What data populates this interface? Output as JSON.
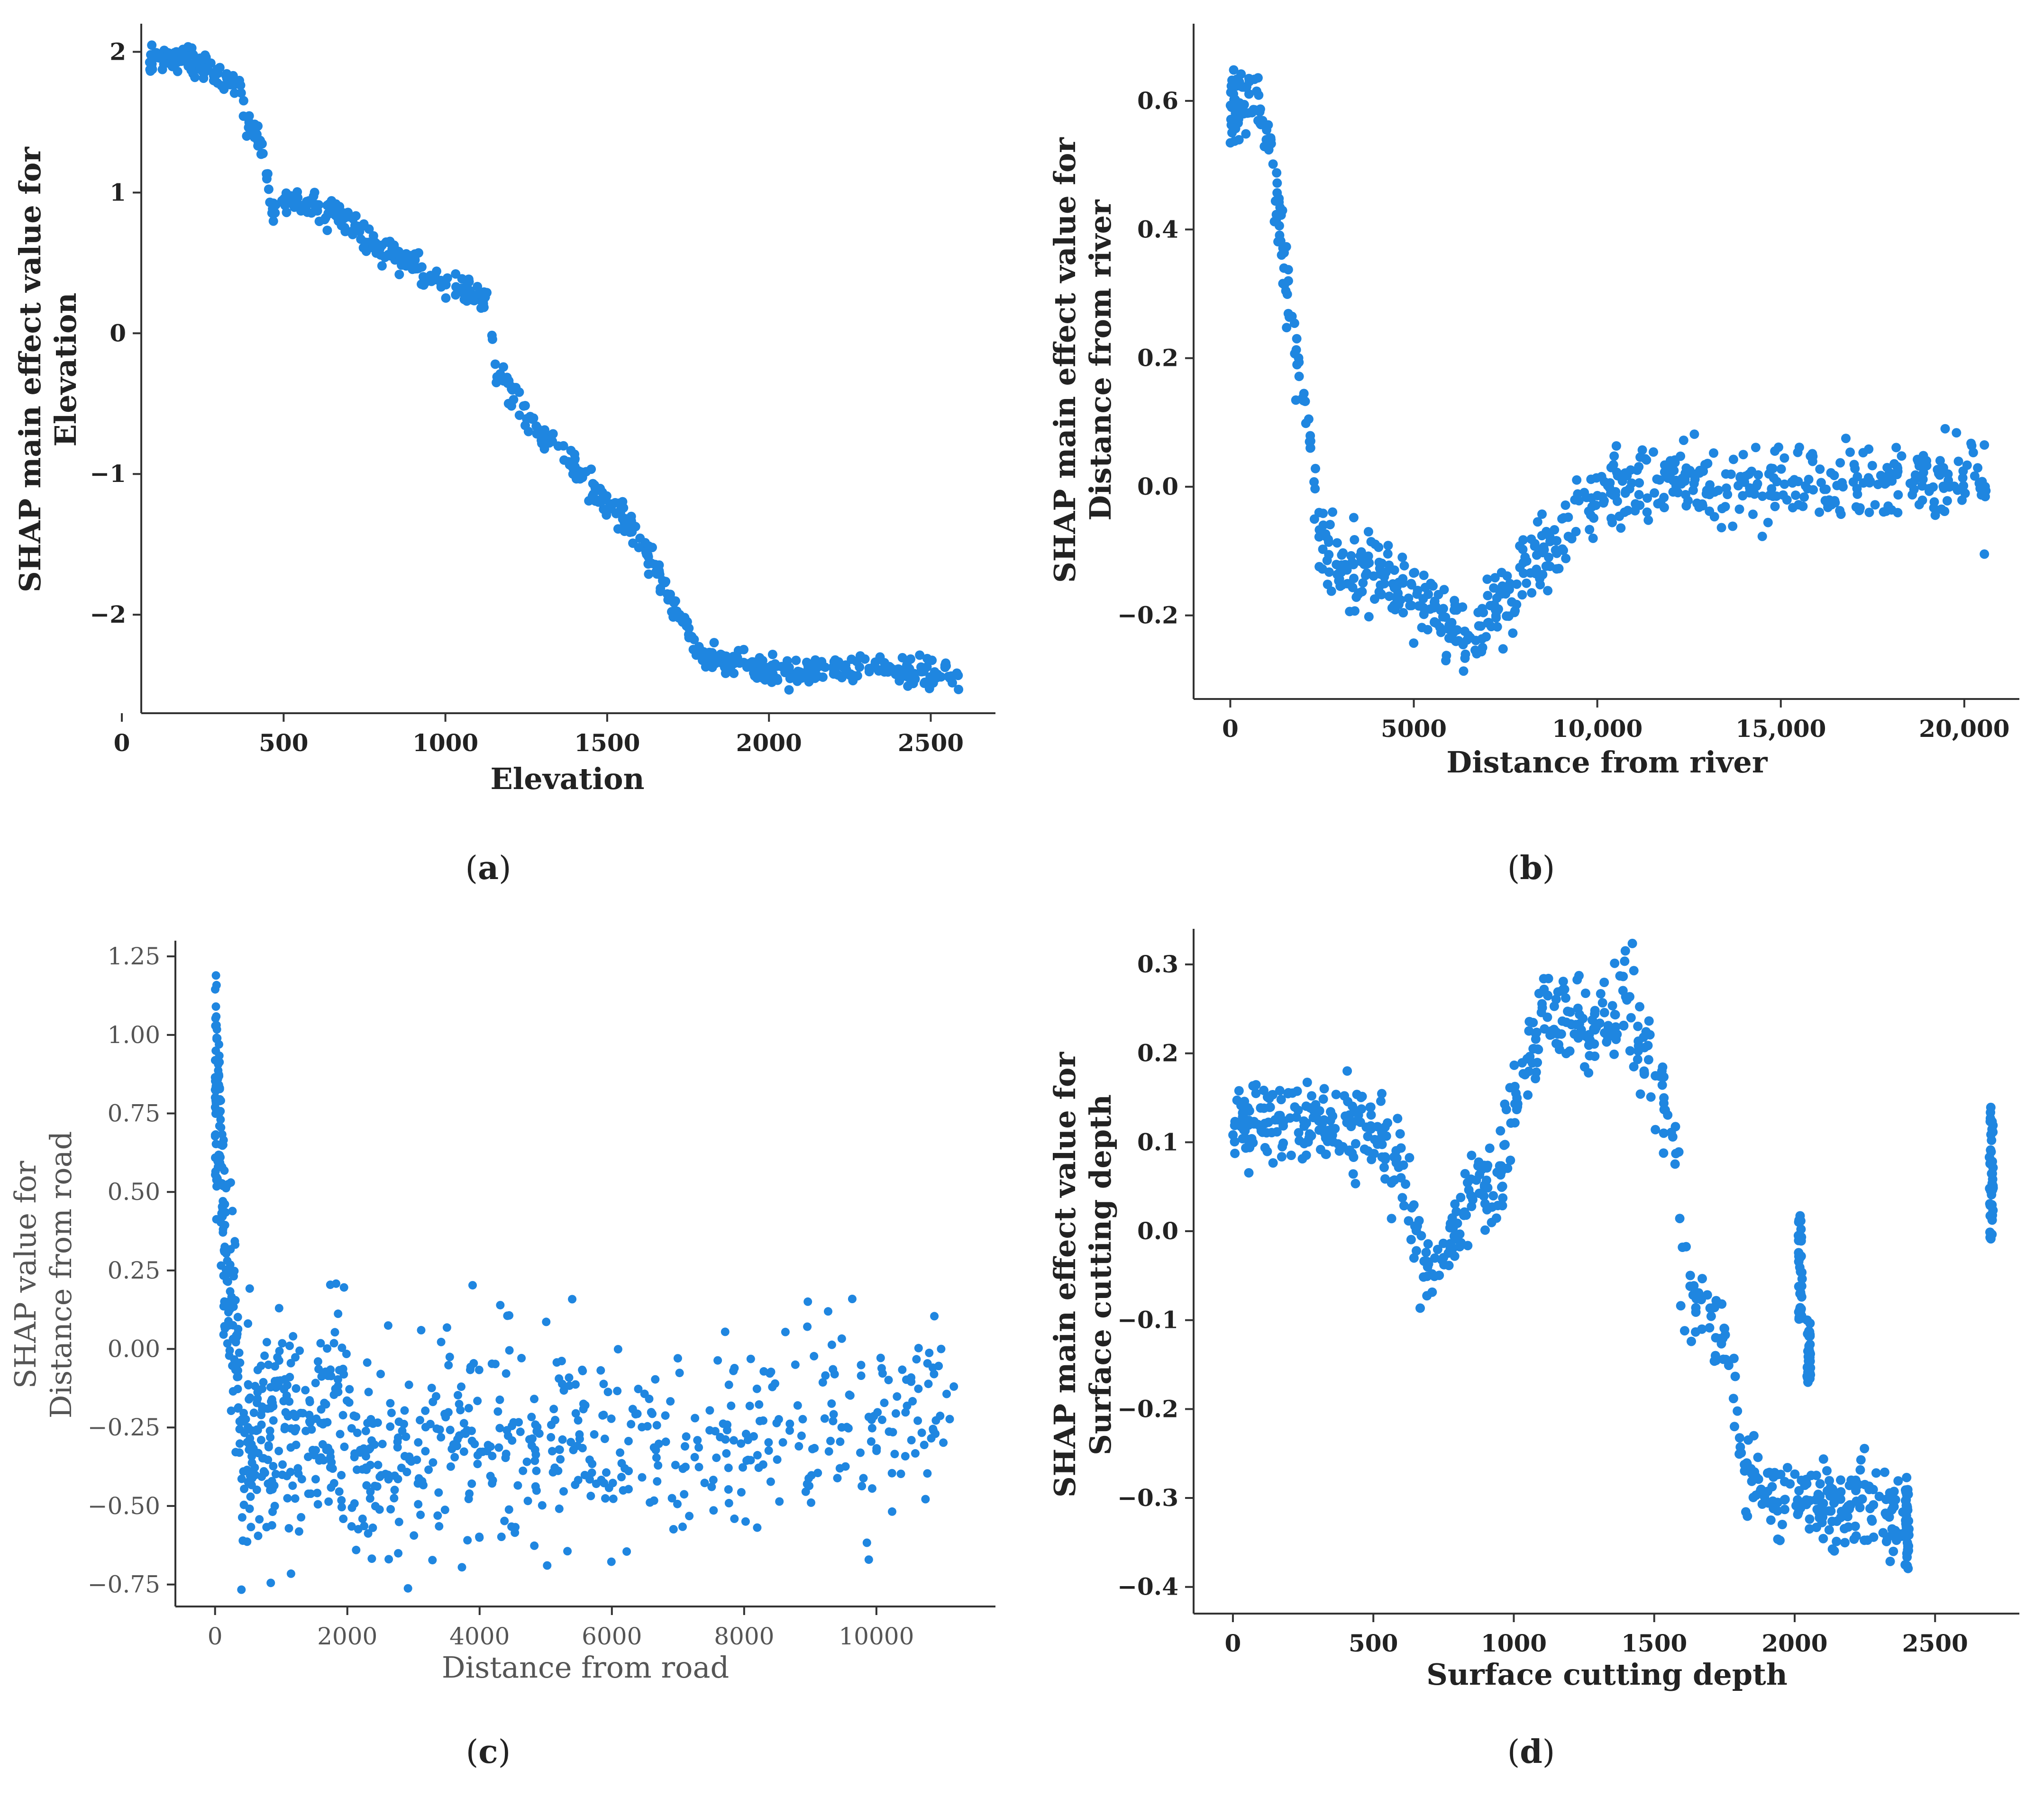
{
  "colors": {
    "points": "#1f86e0",
    "axis": "#333333",
    "text": "#222222"
  },
  "chart_data": [
    {
      "id": "a",
      "type": "scatter",
      "caption": "a",
      "xlabel": "Elevation",
      "ylabel_lines": [
        "SHAP main effect value for",
        "Elevation"
      ],
      "xlim": [
        60,
        2700
      ],
      "ylim": [
        -2.7,
        2.2
      ],
      "xticks": [
        0,
        500,
        1000,
        1500,
        2000,
        2500
      ],
      "xtick_labels": [
        "0",
        "500",
        "1000",
        "1500",
        "2000",
        "2500"
      ],
      "yticks": [
        2,
        1,
        0,
        -1,
        -2
      ],
      "ytick_labels": [
        "2",
        "1",
        "0",
        "−1",
        "−2"
      ],
      "trend_x": [
        80,
        120,
        200,
        260,
        300,
        370,
        380,
        420,
        440,
        460,
        500,
        600,
        700,
        800,
        900,
        1000,
        1100,
        1140,
        1150,
        1200,
        1300,
        1400,
        1500,
        1600,
        1650,
        1700,
        1760,
        1800,
        2000,
        2200,
        2400,
        2500,
        2590
      ],
      "trend_y": [
        1.92,
        1.94,
        1.96,
        1.88,
        1.82,
        1.75,
        1.5,
        1.4,
        1.3,
        0.88,
        0.9,
        0.92,
        0.8,
        0.58,
        0.48,
        0.35,
        0.26,
        0.18,
        -0.22,
        -0.38,
        -0.75,
        -0.95,
        -1.2,
        -1.45,
        -1.65,
        -1.95,
        -2.15,
        -2.32,
        -2.4,
        -2.4,
        -2.4,
        -2.42,
        -2.43
      ],
      "y_spread": 0.05
    },
    {
      "id": "b",
      "type": "scatter",
      "caption": "b",
      "xlabel": "Distance from river",
      "ylabel_lines": [
        "SHAP main effect value for",
        "Distance from river"
      ],
      "xlim": [
        -1000,
        21500
      ],
      "ylim": [
        -0.33,
        0.72
      ],
      "xticks": [
        0,
        5000,
        10000,
        15000,
        20000
      ],
      "xtick_labels": [
        "0",
        "5000",
        "10,000",
        "15,000",
        "20,000"
      ],
      "yticks": [
        0.6,
        0.4,
        0.2,
        0.0,
        -0.2
      ],
      "ytick_labels": [
        "0.6",
        "0.4",
        "0.2",
        "0.0",
        "−0.2"
      ],
      "trend_x": [
        0,
        400,
        800,
        1000,
        1400,
        1800,
        2200,
        2300,
        2400,
        3000,
        3500,
        4000,
        4500,
        5000,
        6000,
        6500,
        7000,
        8000,
        9000,
        10000,
        11000,
        12000,
        14000,
        16000,
        19000,
        20600
      ],
      "trend_y": [
        0.6,
        0.6,
        0.6,
        0.55,
        0.38,
        0.2,
        0.06,
        -0.02,
        -0.08,
        -0.13,
        -0.14,
        -0.12,
        -0.15,
        -0.17,
        -0.21,
        -0.25,
        -0.2,
        -0.14,
        -0.08,
        -0.01,
        0.01,
        0.01,
        0.0,
        0.0,
        0.01,
        0.005
      ],
      "y_spread": 0.03
    },
    {
      "id": "c",
      "type": "scatter",
      "caption": "c",
      "xlabel": "Distance from road",
      "ylabel_lines": [
        "SHAP value for",
        "Distance from road"
      ],
      "xlim": [
        -600,
        11800
      ],
      "ylim": [
        -0.82,
        1.3
      ],
      "xticks": [
        0,
        2000,
        4000,
        6000,
        8000,
        10000
      ],
      "xtick_labels": [
        "0",
        "2000",
        "4000",
        "6000",
        "8000",
        "10000"
      ],
      "yticks": [
        1.25,
        1.0,
        0.75,
        0.5,
        0.25,
        0.0,
        -0.25,
        -0.5,
        -0.75
      ],
      "ytick_labels": [
        "1.25",
        "1.00",
        "0.75",
        "0.50",
        "0.25",
        "0.00",
        "−0.25",
        "−0.50",
        "−0.75"
      ],
      "trend_x": [
        0,
        60,
        150,
        300,
        400,
        1000,
        1600,
        1700,
        2000,
        2100,
        3000,
        4000,
        6000,
        8000,
        11200
      ],
      "trend_y": [
        0.9,
        0.75,
        0.3,
        0.05,
        -0.3,
        -0.3,
        -0.25,
        -0.1,
        -0.2,
        -0.35,
        -0.35,
        -0.3,
        -0.3,
        -0.3,
        -0.2
      ],
      "y_spread": 0.18
    },
    {
      "id": "d",
      "type": "scatter",
      "caption": "d",
      "xlabel": "Surface cutting depth",
      "ylabel_lines": [
        "SHAP main effect value for",
        "Surface cutting depth"
      ],
      "xlim": [
        -140,
        2800
      ],
      "ylim": [
        -0.43,
        0.34
      ],
      "xticks": [
        0,
        500,
        1000,
        1500,
        2000,
        2500
      ],
      "xtick_labels": [
        "0",
        "500",
        "1000",
        "1500",
        "2000",
        "2500"
      ],
      "yticks": [
        0.3,
        0.2,
        0.1,
        0.0,
        -0.1,
        -0.2,
        -0.3,
        -0.4
      ],
      "ytick_labels": [
        "0.3",
        "0.2",
        "0.1",
        "0.0",
        "−0.1",
        "−0.2",
        "−0.3",
        "−0.4"
      ],
      "trend_x": [
        0,
        200,
        400,
        500,
        600,
        650,
        700,
        750,
        800,
        850,
        900,
        950,
        1000,
        1050,
        1100,
        1200,
        1300,
        1400,
        1500,
        1580,
        1600,
        1700,
        1780,
        1800,
        1900,
        2000,
        2050,
        2100,
        2200,
        2300,
        2400
      ],
      "trend_y": [
        0.12,
        0.12,
        0.12,
        0.11,
        0.07,
        0.0,
        -0.06,
        -0.04,
        0.02,
        0.04,
        0.05,
        0.06,
        0.13,
        0.18,
        0.25,
        0.23,
        0.23,
        0.25,
        0.18,
        0.1,
        -0.05,
        -0.1,
        -0.15,
        -0.25,
        -0.3,
        -0.3,
        -0.3,
        -0.3,
        -0.31,
        -0.31,
        -0.33
      ],
      "y_spread": 0.025,
      "vertical_clusters": [
        {
          "x": 2020,
          "y_min": -0.1,
          "y_max": 0.02
        },
        {
          "x": 2050,
          "y_min": -0.17,
          "y_max": -0.1
        },
        {
          "x": 2400,
          "y_min": -0.38,
          "y_max": -0.29
        },
        {
          "x": 2700,
          "y_min": -0.01,
          "y_max": 0.14
        }
      ]
    }
  ]
}
